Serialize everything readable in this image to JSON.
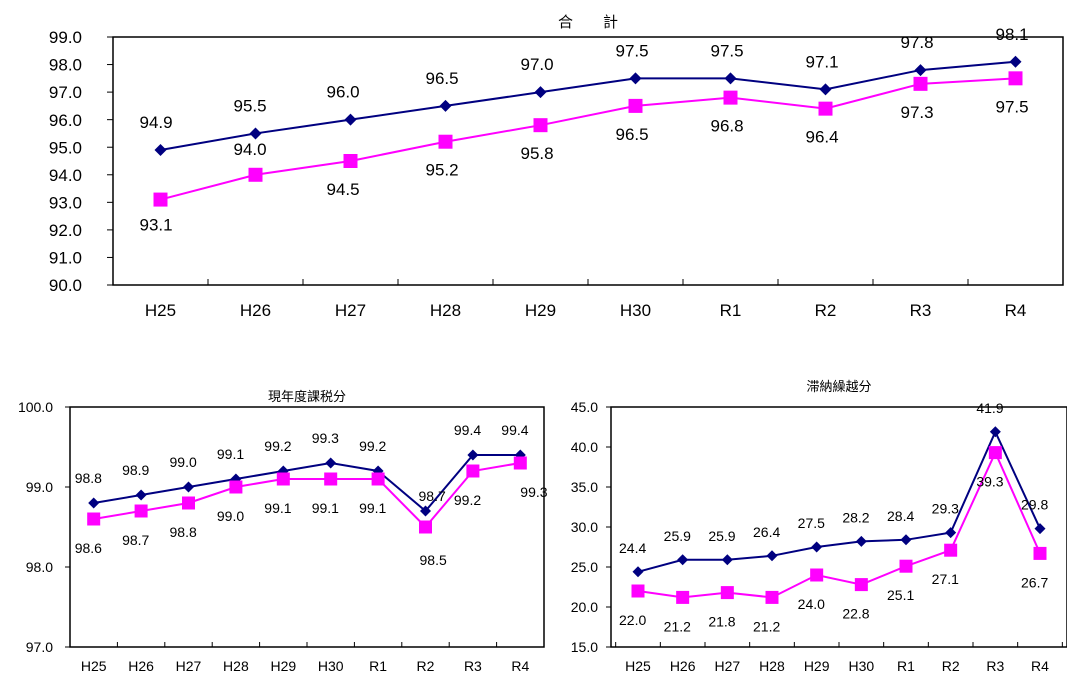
{
  "chart_data": [
    {
      "id": "total",
      "type": "line",
      "title": "合　　計",
      "categories": [
        "H25",
        "H26",
        "H27",
        "H28",
        "H29",
        "H30",
        "R1",
        "R2",
        "R3",
        "R4"
      ],
      "ylim": [
        90.0,
        99.0
      ],
      "yticks": [
        90.0,
        91.0,
        92.0,
        93.0,
        94.0,
        95.0,
        96.0,
        97.0,
        98.0,
        99.0
      ],
      "ytick_labels": [
        "90.0",
        "91.0",
        "92.0",
        "93.0",
        "94.0",
        "95.0",
        "96.0",
        "97.0",
        "98.0",
        "99.0"
      ],
      "grid": false,
      "legend": "none",
      "series": [
        {
          "values": [
            94.9,
            95.5,
            96.0,
            96.5,
            97.0,
            97.5,
            97.5,
            97.1,
            97.8,
            98.1
          ],
          "labels": [
            "94.9",
            "95.5",
            "96.0",
            "96.5",
            "97.0",
            "97.5",
            "97.5",
            "97.1",
            "97.8",
            "98.1"
          ],
          "color": "#000080",
          "marker": "diamond"
        },
        {
          "values": [
            93.1,
            94.0,
            94.5,
            95.2,
            95.8,
            96.5,
            96.8,
            96.4,
            97.3,
            97.5
          ],
          "labels": [
            "93.1",
            "94.0",
            "94.5",
            "95.2",
            "95.8",
            "96.5",
            "96.8",
            "96.4",
            "97.3",
            "97.5"
          ],
          "color": "#FF00FF",
          "marker": "square"
        }
      ]
    },
    {
      "id": "current",
      "type": "line",
      "title": "現年度課税分",
      "categories": [
        "H25",
        "H26",
        "H27",
        "H28",
        "H29",
        "H30",
        "R1",
        "R2",
        "R3",
        "R4"
      ],
      "ylim": [
        97.0,
        100.0
      ],
      "yticks": [
        97.0,
        98.0,
        99.0,
        100.0
      ],
      "ytick_labels": [
        "97.0",
        "98.0",
        "99.0",
        "100.0"
      ],
      "grid": false,
      "legend": "none",
      "series": [
        {
          "values": [
            98.8,
            98.9,
            99.0,
            99.1,
            99.2,
            99.3,
            99.2,
            98.7,
            99.4,
            99.4
          ],
          "labels": [
            "98.8",
            "98.9",
            "99.0",
            "99.1",
            "99.2",
            "99.3",
            "99.2",
            "98.7",
            "99.4",
            "99.4"
          ],
          "color": "#000080",
          "marker": "diamond"
        },
        {
          "values": [
            98.6,
            98.7,
            98.8,
            99.0,
            99.1,
            99.1,
            99.1,
            98.5,
            99.2,
            99.3
          ],
          "labels": [
            "98.6",
            "98.7",
            "98.8",
            "99.0",
            "99.1",
            "99.1",
            "99.1",
            "98.5",
            "99.2",
            "99.3"
          ],
          "color": "#FF00FF",
          "marker": "square"
        }
      ]
    },
    {
      "id": "arrears",
      "type": "line",
      "title": "滞納繰越分",
      "categories": [
        "H25",
        "H26",
        "H27",
        "H28",
        "H29",
        "H30",
        "R1",
        "R2",
        "R3",
        "R4"
      ],
      "ylim": [
        15.0,
        45.0
      ],
      "yticks": [
        15.0,
        20.0,
        25.0,
        30.0,
        35.0,
        40.0,
        45.0
      ],
      "ytick_labels": [
        "15.0",
        "20.0",
        "25.0",
        "30.0",
        "35.0",
        "40.0",
        "45.0"
      ],
      "grid": false,
      "legend": "none",
      "series": [
        {
          "values": [
            24.4,
            25.9,
            25.9,
            26.4,
            27.5,
            28.2,
            28.4,
            29.3,
            41.9,
            29.8
          ],
          "labels": [
            "24.4",
            "25.9",
            "25.9",
            "26.4",
            "27.5",
            "28.2",
            "28.4",
            "29.3",
            "41.9",
            "29.8"
          ],
          "color": "#000080",
          "marker": "diamond"
        },
        {
          "values": [
            22.0,
            21.2,
            21.8,
            21.2,
            24.0,
            22.8,
            25.1,
            27.1,
            39.3,
            26.7
          ],
          "labels": [
            "22.0",
            "21.2",
            "21.8",
            "21.2",
            "24.0",
            "22.8",
            "25.1",
            "27.1",
            "39.3",
            "26.7"
          ],
          "color": "#FF00FF",
          "marker": "square"
        }
      ]
    }
  ]
}
